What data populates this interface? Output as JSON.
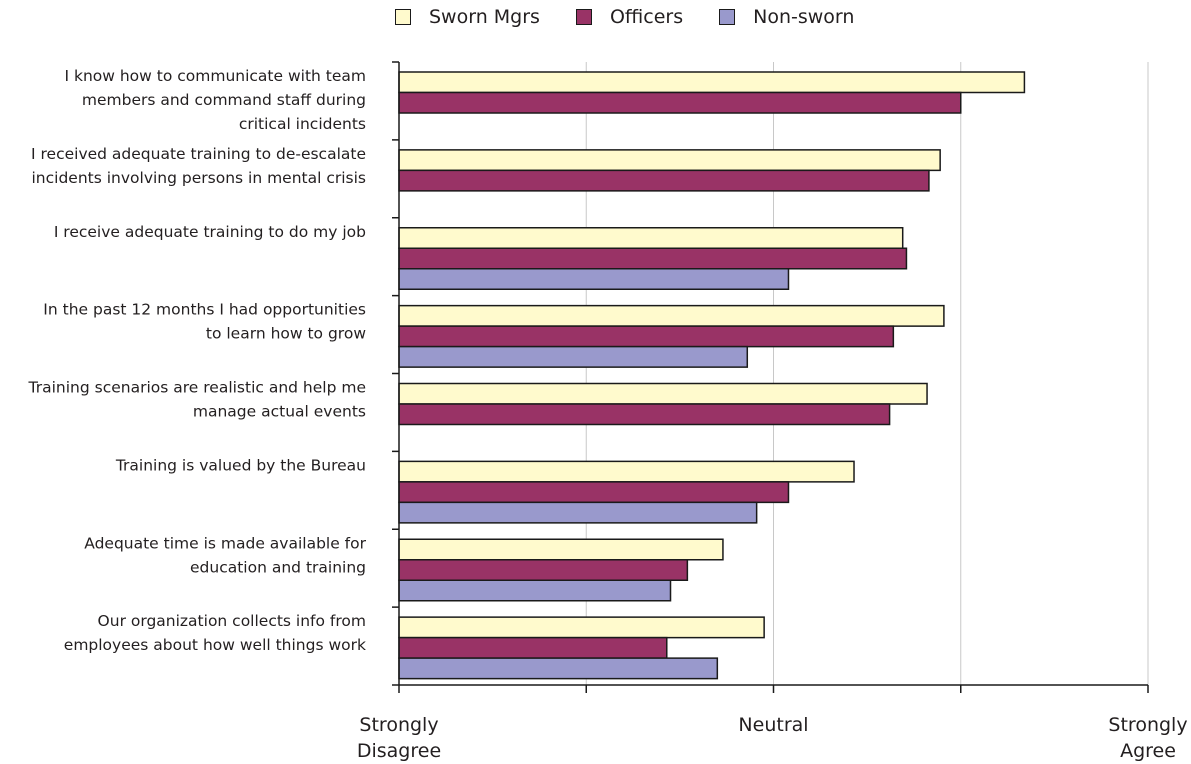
{
  "legend": [
    {
      "name": "Sworn Mgrs",
      "color": "#fffacd"
    },
    {
      "name": "Officers",
      "color": "#993366"
    },
    {
      "name": "Non-sworn",
      "color": "#9999cc"
    }
  ],
  "chart_data": {
    "type": "bar",
    "orientation": "horizontal",
    "title": "",
    "xlabel": "",
    "ylabel": "",
    "xlim": [
      1,
      5
    ],
    "grid": true,
    "legend_position": "top",
    "x_tick_labels": [
      {
        "value": 1,
        "lines": [
          "Strongly",
          "Disagree"
        ]
      },
      {
        "value": 3,
        "lines": [
          "Neutral"
        ]
      },
      {
        "value": 5,
        "lines": [
          "Strongly",
          "Agree"
        ]
      }
    ],
    "categories": [
      [
        "I know how to communicate with team",
        "members and command staff during",
        "critical incidents"
      ],
      [
        "I received adequate training to de-escalate",
        "incidents involving persons in mental crisis"
      ],
      [
        "I receive adequate training to do my job"
      ],
      [
        "In the past 12 months I had opportunities",
        "to learn how to grow"
      ],
      [
        "Training scenarios are realistic and help me",
        "manage actual events"
      ],
      [
        "Training is valued by the Bureau"
      ],
      [
        "Adequate time is made available for",
        "education and training"
      ],
      [
        "Our organization collects info from",
        "employees about how well things work"
      ]
    ],
    "series": [
      {
        "name": "Sworn Mgrs",
        "values": [
          4.34,
          3.89,
          3.69,
          3.91,
          3.82,
          3.43,
          2.73,
          2.95
        ]
      },
      {
        "name": "Officers",
        "values": [
          4.0,
          3.83,
          3.71,
          3.64,
          3.62,
          3.08,
          2.54,
          2.43
        ]
      },
      {
        "name": "Non-sworn",
        "values": [
          null,
          null,
          3.08,
          2.86,
          null,
          2.91,
          2.45,
          2.7
        ]
      }
    ]
  }
}
